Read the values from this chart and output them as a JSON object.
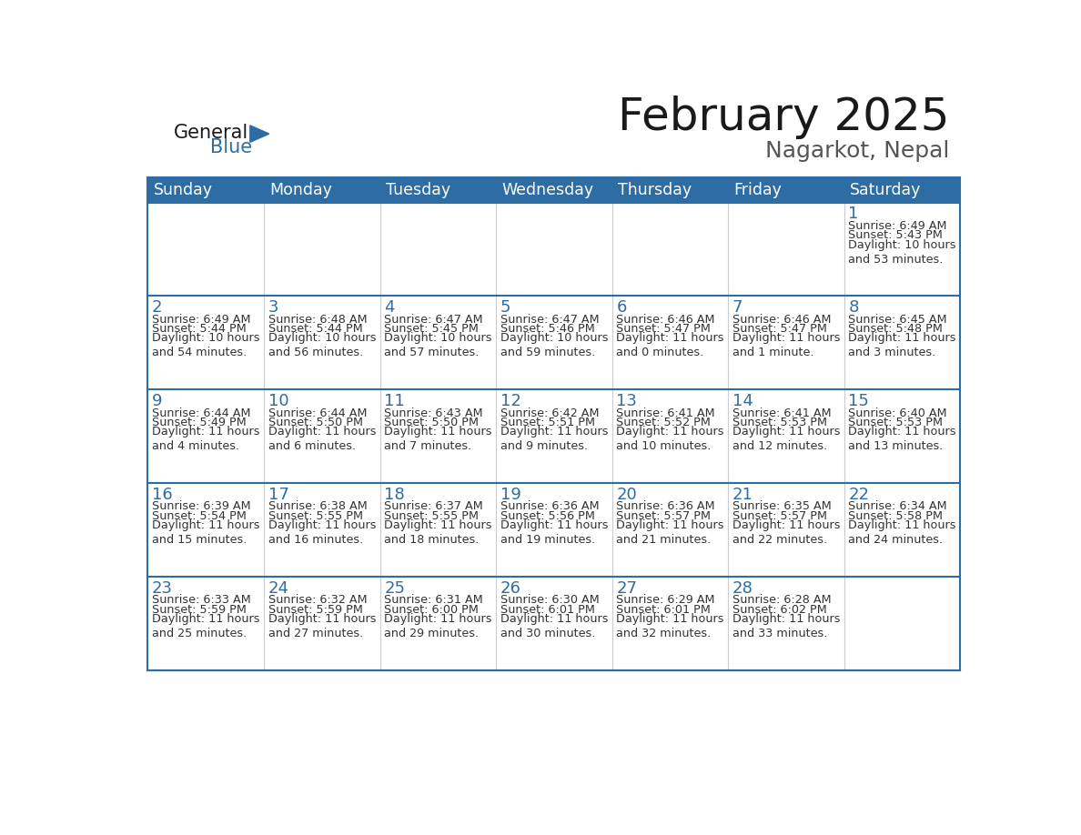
{
  "title": "February 2025",
  "subtitle": "Nagarkot, Nepal",
  "header_bg": "#2e6da4",
  "header_text_color": "#ffffff",
  "day_number_color": "#2e6da4",
  "text_color": "#333333",
  "line_color": "#2e6da4",
  "days_of_week": [
    "Sunday",
    "Monday",
    "Tuesday",
    "Wednesday",
    "Thursday",
    "Friday",
    "Saturday"
  ],
  "calendar_data": [
    [
      null,
      null,
      null,
      null,
      null,
      null,
      {
        "day": 1,
        "sunrise": "6:49 AM",
        "sunset": "5:43 PM",
        "daylight": "10 hours\nand 53 minutes."
      }
    ],
    [
      {
        "day": 2,
        "sunrise": "6:49 AM",
        "sunset": "5:44 PM",
        "daylight": "10 hours\nand 54 minutes."
      },
      {
        "day": 3,
        "sunrise": "6:48 AM",
        "sunset": "5:44 PM",
        "daylight": "10 hours\nand 56 minutes."
      },
      {
        "day": 4,
        "sunrise": "6:47 AM",
        "sunset": "5:45 PM",
        "daylight": "10 hours\nand 57 minutes."
      },
      {
        "day": 5,
        "sunrise": "6:47 AM",
        "sunset": "5:46 PM",
        "daylight": "10 hours\nand 59 minutes."
      },
      {
        "day": 6,
        "sunrise": "6:46 AM",
        "sunset": "5:47 PM",
        "daylight": "11 hours\nand 0 minutes."
      },
      {
        "day": 7,
        "sunrise": "6:46 AM",
        "sunset": "5:47 PM",
        "daylight": "11 hours\nand 1 minute."
      },
      {
        "day": 8,
        "sunrise": "6:45 AM",
        "sunset": "5:48 PM",
        "daylight": "11 hours\nand 3 minutes."
      }
    ],
    [
      {
        "day": 9,
        "sunrise": "6:44 AM",
        "sunset": "5:49 PM",
        "daylight": "11 hours\nand 4 minutes."
      },
      {
        "day": 10,
        "sunrise": "6:44 AM",
        "sunset": "5:50 PM",
        "daylight": "11 hours\nand 6 minutes."
      },
      {
        "day": 11,
        "sunrise": "6:43 AM",
        "sunset": "5:50 PM",
        "daylight": "11 hours\nand 7 minutes."
      },
      {
        "day": 12,
        "sunrise": "6:42 AM",
        "sunset": "5:51 PM",
        "daylight": "11 hours\nand 9 minutes."
      },
      {
        "day": 13,
        "sunrise": "6:41 AM",
        "sunset": "5:52 PM",
        "daylight": "11 hours\nand 10 minutes."
      },
      {
        "day": 14,
        "sunrise": "6:41 AM",
        "sunset": "5:53 PM",
        "daylight": "11 hours\nand 12 minutes."
      },
      {
        "day": 15,
        "sunrise": "6:40 AM",
        "sunset": "5:53 PM",
        "daylight": "11 hours\nand 13 minutes."
      }
    ],
    [
      {
        "day": 16,
        "sunrise": "6:39 AM",
        "sunset": "5:54 PM",
        "daylight": "11 hours\nand 15 minutes."
      },
      {
        "day": 17,
        "sunrise": "6:38 AM",
        "sunset": "5:55 PM",
        "daylight": "11 hours\nand 16 minutes."
      },
      {
        "day": 18,
        "sunrise": "6:37 AM",
        "sunset": "5:55 PM",
        "daylight": "11 hours\nand 18 minutes."
      },
      {
        "day": 19,
        "sunrise": "6:36 AM",
        "sunset": "5:56 PM",
        "daylight": "11 hours\nand 19 minutes."
      },
      {
        "day": 20,
        "sunrise": "6:36 AM",
        "sunset": "5:57 PM",
        "daylight": "11 hours\nand 21 minutes."
      },
      {
        "day": 21,
        "sunrise": "6:35 AM",
        "sunset": "5:57 PM",
        "daylight": "11 hours\nand 22 minutes."
      },
      {
        "day": 22,
        "sunrise": "6:34 AM",
        "sunset": "5:58 PM",
        "daylight": "11 hours\nand 24 minutes."
      }
    ],
    [
      {
        "day": 23,
        "sunrise": "6:33 AM",
        "sunset": "5:59 PM",
        "daylight": "11 hours\nand 25 minutes."
      },
      {
        "day": 24,
        "sunrise": "6:32 AM",
        "sunset": "5:59 PM",
        "daylight": "11 hours\nand 27 minutes."
      },
      {
        "day": 25,
        "sunrise": "6:31 AM",
        "sunset": "6:00 PM",
        "daylight": "11 hours\nand 29 minutes."
      },
      {
        "day": 26,
        "sunrise": "6:30 AM",
        "sunset": "6:01 PM",
        "daylight": "11 hours\nand 30 minutes."
      },
      {
        "day": 27,
        "sunrise": "6:29 AM",
        "sunset": "6:01 PM",
        "daylight": "11 hours\nand 32 minutes."
      },
      {
        "day": 28,
        "sunrise": "6:28 AM",
        "sunset": "6:02 PM",
        "daylight": "11 hours\nand 33 minutes."
      },
      null
    ]
  ]
}
